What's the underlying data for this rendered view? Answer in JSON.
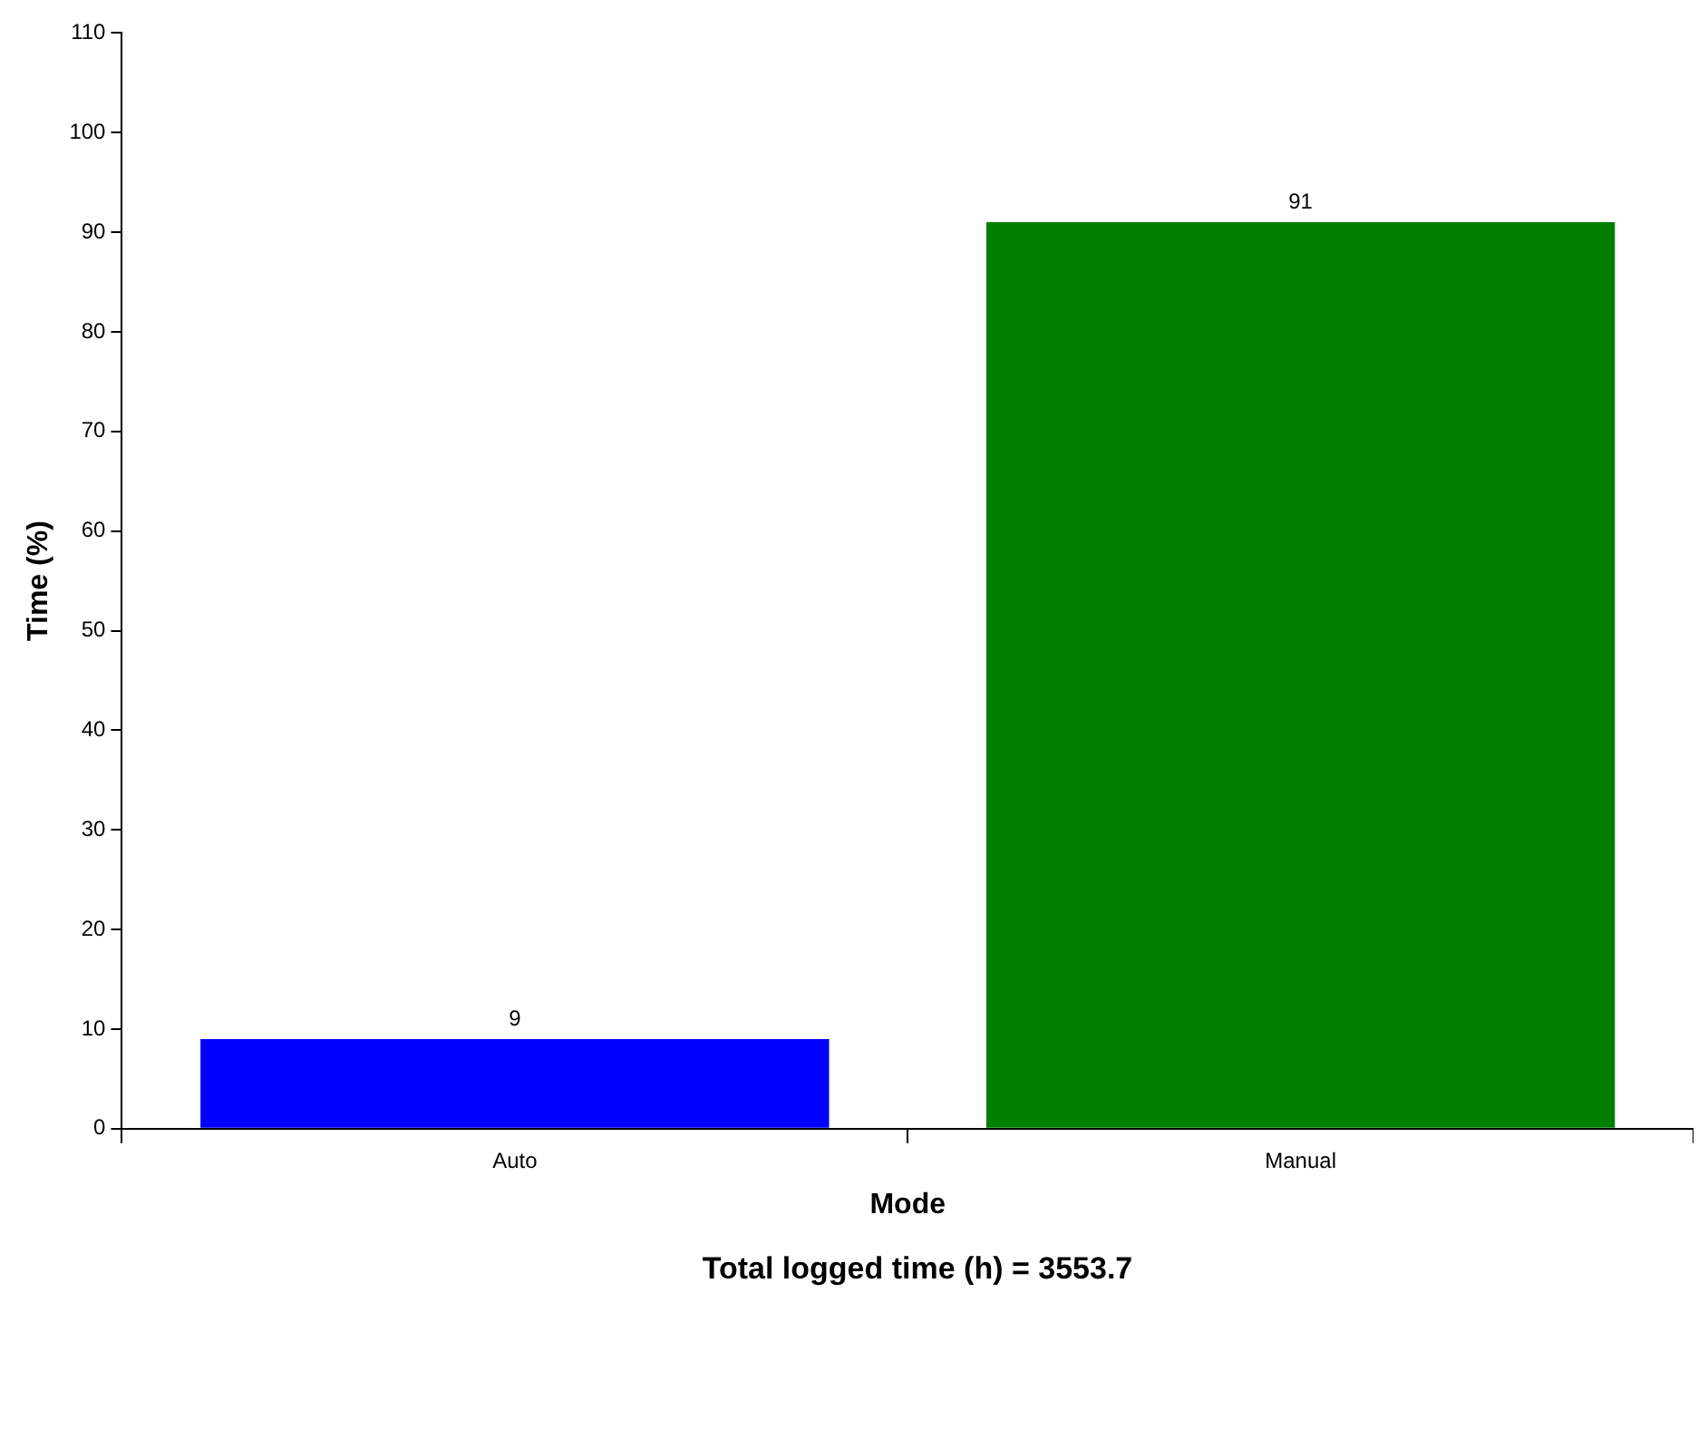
{
  "chart_data": {
    "type": "bar",
    "xlabel": "Mode",
    "ylabel": "Time (%)",
    "categories": [
      "Auto",
      "Manual"
    ],
    "values": [
      9,
      91
    ],
    "colors": [
      "#0000ff",
      "#008000"
    ],
    "ylim": [
      0,
      110
    ],
    "yticks": [
      0,
      10,
      20,
      30,
      40,
      50,
      60,
      70,
      80,
      90,
      100,
      110
    ],
    "grid": false,
    "legend": false,
    "data_labels": true,
    "annotations": [
      "Total logged time (h) = 3553.7"
    ]
  }
}
